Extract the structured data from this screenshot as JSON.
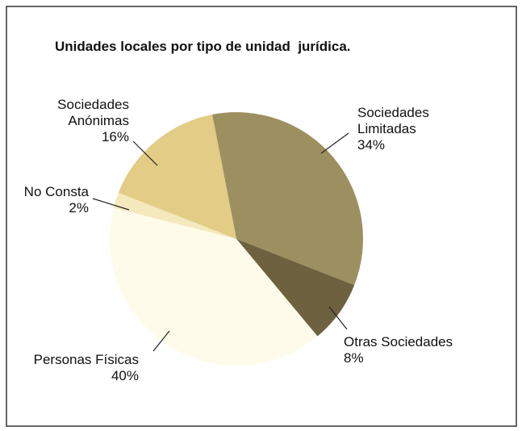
{
  "chart_data": {
    "type": "pie",
    "title": "Unidades locales por tipo de unidad  jurídica.",
    "categories": [
      "Sociedades Limitadas",
      "Otras Sociedades",
      "Personas Físicas",
      "No Consta",
      "Sociedades Anónimas"
    ],
    "values": [
      34,
      8,
      40,
      2,
      16
    ],
    "value_labels": [
      "34%",
      "8%",
      "40%",
      "2%",
      "16%"
    ],
    "colors": [
      "#9d9060",
      "#6d6140",
      "#fffbea",
      "#f4e9bd",
      "#e2cc86"
    ]
  }
}
